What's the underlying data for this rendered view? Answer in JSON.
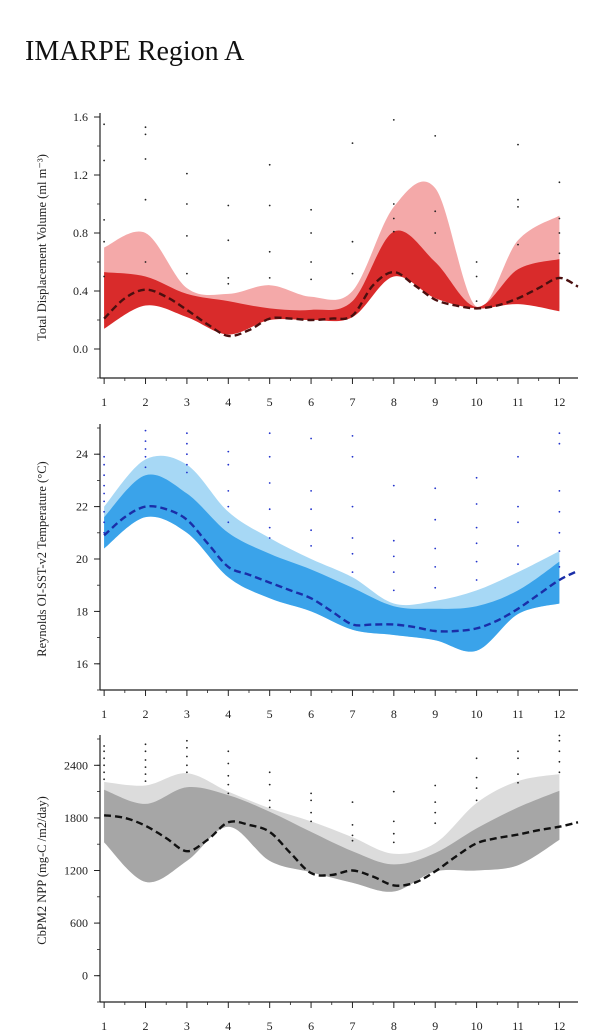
{
  "page": {
    "title": "IMARPE Region A"
  },
  "chart_data": [
    {
      "type": "area",
      "ylabel": "Total Displacement Volume (ml m⁻³)",
      "xlabel": "",
      "x": [
        1,
        2,
        3,
        4,
        5,
        6,
        7,
        8,
        9,
        10,
        11,
        12
      ],
      "xlim": [
        0.9,
        12.45
      ],
      "ylim": [
        -0.2,
        1.6
      ],
      "yticks": [
        0.0,
        0.4,
        0.8,
        1.2,
        1.6
      ],
      "ytick_labels": [
        "0.0",
        "0.4",
        "0.8",
        "1.2",
        "1.6"
      ],
      "minor_y_step": 0.2,
      "colors": {
        "outer": "#f4a9a9",
        "inner": "#d92b2b",
        "median": "#4a0f0f",
        "dots": "#222222"
      },
      "outer_band": {
        "upper": [
          0.7,
          0.8,
          0.42,
          0.38,
          0.44,
          0.36,
          0.4,
          0.98,
          1.11,
          0.29,
          0.75,
          0.92
        ],
        "lower": [
          0.18,
          0.33,
          0.25,
          0.14,
          0.2,
          0.21,
          0.24,
          0.51,
          0.36,
          0.28,
          0.33,
          0.28
        ]
      },
      "inner_band": {
        "upper": [
          0.53,
          0.5,
          0.38,
          0.33,
          0.28,
          0.27,
          0.33,
          0.81,
          0.6,
          0.29,
          0.55,
          0.62
        ],
        "lower": [
          0.14,
          0.3,
          0.22,
          0.1,
          0.2,
          0.2,
          0.22,
          0.5,
          0.35,
          0.28,
          0.31,
          0.26
        ]
      },
      "median": {
        "x": [
          1,
          1.5,
          2,
          2.5,
          3,
          3.5,
          4,
          4.5,
          5,
          5.5,
          6,
          6.5,
          7,
          7.5,
          8,
          8.5,
          9,
          9.5,
          10,
          10.5,
          11,
          11.5,
          12,
          12.45
        ],
        "y": [
          0.21,
          0.35,
          0.41,
          0.36,
          0.27,
          0.17,
          0.09,
          0.13,
          0.21,
          0.21,
          0.2,
          0.21,
          0.23,
          0.44,
          0.53,
          0.44,
          0.34,
          0.3,
          0.28,
          0.3,
          0.35,
          0.42,
          0.49,
          0.43
        ]
      },
      "points": {
        "x": [
          1,
          1,
          1,
          1,
          1,
          2,
          2,
          2,
          2,
          2,
          3,
          3,
          3,
          3,
          4,
          4,
          4,
          4,
          5,
          5,
          5,
          5,
          6,
          6,
          6,
          6,
          7,
          7,
          7,
          8,
          8,
          8,
          8,
          9,
          9,
          9,
          10,
          10,
          10,
          11,
          11,
          11,
          11,
          12,
          12,
          12,
          12
        ],
        "y": [
          1.55,
          1.3,
          0.89,
          0.74,
          0.5,
          1.53,
          1.48,
          1.31,
          1.03,
          0.6,
          1.21,
          1.0,
          0.78,
          0.52,
          0.99,
          0.75,
          0.49,
          0.45,
          1.27,
          0.99,
          0.67,
          0.49,
          0.96,
          0.8,
          0.6,
          0.48,
          1.42,
          0.74,
          0.52,
          1.58,
          1.0,
          0.9,
          0.81,
          1.47,
          0.95,
          0.8,
          0.6,
          0.5,
          0.33,
          1.41,
          1.03,
          0.98,
          0.72,
          1.15,
          0.9,
          0.8,
          0.66
        ]
      }
    },
    {
      "type": "area",
      "ylabel": "Reynolds OI-SST-v2 Temperature (°C)",
      "xlabel": "",
      "x": [
        1,
        2,
        3,
        4,
        5,
        6,
        7,
        8,
        9,
        10,
        11,
        12
      ],
      "xlim": [
        0.9,
        12.45
      ],
      "ylim": [
        15.0,
        25.0
      ],
      "yticks": [
        16,
        18,
        20,
        22,
        24
      ],
      "ytick_labels": [
        "16",
        "18",
        "20",
        "22",
        "24"
      ],
      "minor_y_step": 1,
      "colors": {
        "outer": "#a7d8f5",
        "inner": "#3aa3ea",
        "median": "#1a2ea8",
        "dots": "#2233cc"
      },
      "outer_band": {
        "upper": [
          22.0,
          23.8,
          23.6,
          21.8,
          20.8,
          20.0,
          19.3,
          18.3,
          18.4,
          18.8,
          19.5,
          20.3
        ],
        "lower": [
          20.4,
          21.6,
          21.0,
          19.3,
          18.5,
          18.0,
          17.3,
          17.1,
          16.9,
          16.5,
          17.9,
          18.3
        ]
      },
      "inner_band": {
        "upper": [
          21.6,
          23.2,
          22.5,
          21.0,
          20.2,
          19.6,
          18.9,
          18.2,
          18.1,
          18.2,
          18.8,
          19.9
        ],
        "lower": [
          20.4,
          21.6,
          21.0,
          19.3,
          18.5,
          18.0,
          17.3,
          17.1,
          16.9,
          16.5,
          17.9,
          18.3
        ]
      },
      "median": {
        "x": [
          1,
          1.5,
          2,
          2.5,
          3,
          3.5,
          4,
          4.5,
          5,
          5.5,
          6,
          6.5,
          7,
          7.5,
          8,
          8.5,
          9,
          9.5,
          10,
          10.5,
          11,
          11.5,
          12,
          12.45
        ],
        "y": [
          20.9,
          21.6,
          22.0,
          21.9,
          21.5,
          20.6,
          19.7,
          19.4,
          19.1,
          18.8,
          18.5,
          18.0,
          17.5,
          17.5,
          17.5,
          17.4,
          17.25,
          17.25,
          17.35,
          17.65,
          18.1,
          18.65,
          19.2,
          19.55
        ]
      },
      "points": {
        "x": [
          1,
          1,
          1,
          1,
          1,
          1,
          1,
          1,
          1,
          2,
          2,
          2,
          2,
          2,
          3,
          3,
          3,
          3,
          3,
          4,
          4,
          4,
          4,
          4,
          5,
          5,
          5,
          5,
          5,
          5,
          6,
          6,
          6,
          6,
          6,
          7,
          7,
          7,
          7,
          7,
          7,
          8,
          8,
          8,
          8,
          8,
          9,
          9,
          9,
          9,
          9,
          10,
          10,
          10,
          10,
          10,
          10,
          11,
          11,
          11,
          11,
          11,
          12,
          12,
          12,
          12,
          12,
          12,
          12
        ],
        "y": [
          23.9,
          23.6,
          23.2,
          22.8,
          22.5,
          22.2,
          21.8,
          21.4,
          21.0,
          24.9,
          24.5,
          24.2,
          23.9,
          23.5,
          24.8,
          24.4,
          24.0,
          23.6,
          23.3,
          24.1,
          23.6,
          22.6,
          22.0,
          21.4,
          24.8,
          23.9,
          22.9,
          21.9,
          21.2,
          20.8,
          24.6,
          22.6,
          21.9,
          21.1,
          20.5,
          24.7,
          23.9,
          22.0,
          20.8,
          20.2,
          19.5,
          22.8,
          20.7,
          20.1,
          19.5,
          18.8,
          22.7,
          21.5,
          20.4,
          19.7,
          18.9,
          23.1,
          22.1,
          21.2,
          20.6,
          19.9,
          19.2,
          23.9,
          22.0,
          21.4,
          20.5,
          19.8,
          24.8,
          24.4,
          22.6,
          21.8,
          21.0,
          20.3,
          19.7
        ]
      }
    },
    {
      "type": "area",
      "ylabel": "CbPM2 NPP (mg-C /m2/day)",
      "xlabel": "",
      "x": [
        1,
        2,
        3,
        4,
        5,
        6,
        7,
        8,
        9,
        10,
        11,
        12
      ],
      "xlim": [
        0.9,
        12.45
      ],
      "ylim": [
        -300,
        2700
      ],
      "yticks": [
        0,
        600,
        1200,
        1800,
        2400
      ],
      "ytick_labels": [
        "0",
        "600",
        "1200",
        "1800",
        "2400"
      ],
      "minor_y_step": 300,
      "colors": {
        "outer": "#dcdcdc",
        "inner": "#a6a6a6",
        "median": "#111111",
        "dots": "#222222"
      },
      "outer_band": {
        "upper": [
          2210,
          2170,
          2310,
          2100,
          1910,
          1760,
          1580,
          1390,
          1510,
          1970,
          2220,
          2300
        ],
        "lower": [
          1520,
          1070,
          1310,
          1700,
          1310,
          1180,
          1060,
          960,
          1190,
          1200,
          1260,
          1550
        ]
      },
      "inner_band": {
        "upper": [
          2120,
          1960,
          2150,
          2060,
          1870,
          1640,
          1420,
          1270,
          1400,
          1680,
          1920,
          2110
        ],
        "lower": [
          1520,
          1070,
          1310,
          1700,
          1310,
          1180,
          1060,
          960,
          1190,
          1200,
          1260,
          1550
        ]
      },
      "median": {
        "x": [
          1,
          1.5,
          2,
          2.5,
          3,
          3.5,
          4,
          4.5,
          5,
          5.5,
          6,
          6.5,
          7,
          7.5,
          8,
          8.5,
          9,
          9.5,
          10,
          10.5,
          11,
          11.5,
          12,
          12.45
        ],
        "y": [
          1830,
          1800,
          1710,
          1570,
          1420,
          1550,
          1750,
          1720,
          1640,
          1400,
          1170,
          1150,
          1200,
          1130,
          1030,
          1060,
          1190,
          1360,
          1510,
          1570,
          1610,
          1660,
          1700,
          1750
        ]
      },
      "points": {
        "x": [
          1,
          1,
          1,
          1,
          1,
          1,
          2,
          2,
          2,
          2,
          2,
          2,
          3,
          3,
          3,
          3,
          3,
          4,
          4,
          4,
          4,
          4,
          5,
          5,
          5,
          5,
          6,
          6,
          6,
          6,
          7,
          7,
          7,
          7,
          8,
          8,
          8,
          8,
          9,
          9,
          9,
          9,
          10,
          10,
          10,
          10,
          11,
          11,
          11,
          11,
          12,
          12,
          12,
          12,
          12
        ],
        "y": [
          2620,
          2560,
          2480,
          2400,
          2320,
          2240,
          2640,
          2560,
          2460,
          2380,
          2300,
          2220,
          2680,
          2600,
          2500,
          2400,
          2320,
          2560,
          2420,
          2280,
          2180,
          2080,
          2320,
          2180,
          2000,
          1920,
          2080,
          2000,
          1860,
          1760,
          1980,
          1720,
          1600,
          1540,
          2100,
          1760,
          1620,
          1520,
          2170,
          1980,
          1860,
          1740,
          2480,
          2260,
          2140,
          2000,
          2560,
          2480,
          2300,
          2200,
          2740,
          2680,
          2560,
          2440,
          2320
        ]
      }
    }
  ]
}
